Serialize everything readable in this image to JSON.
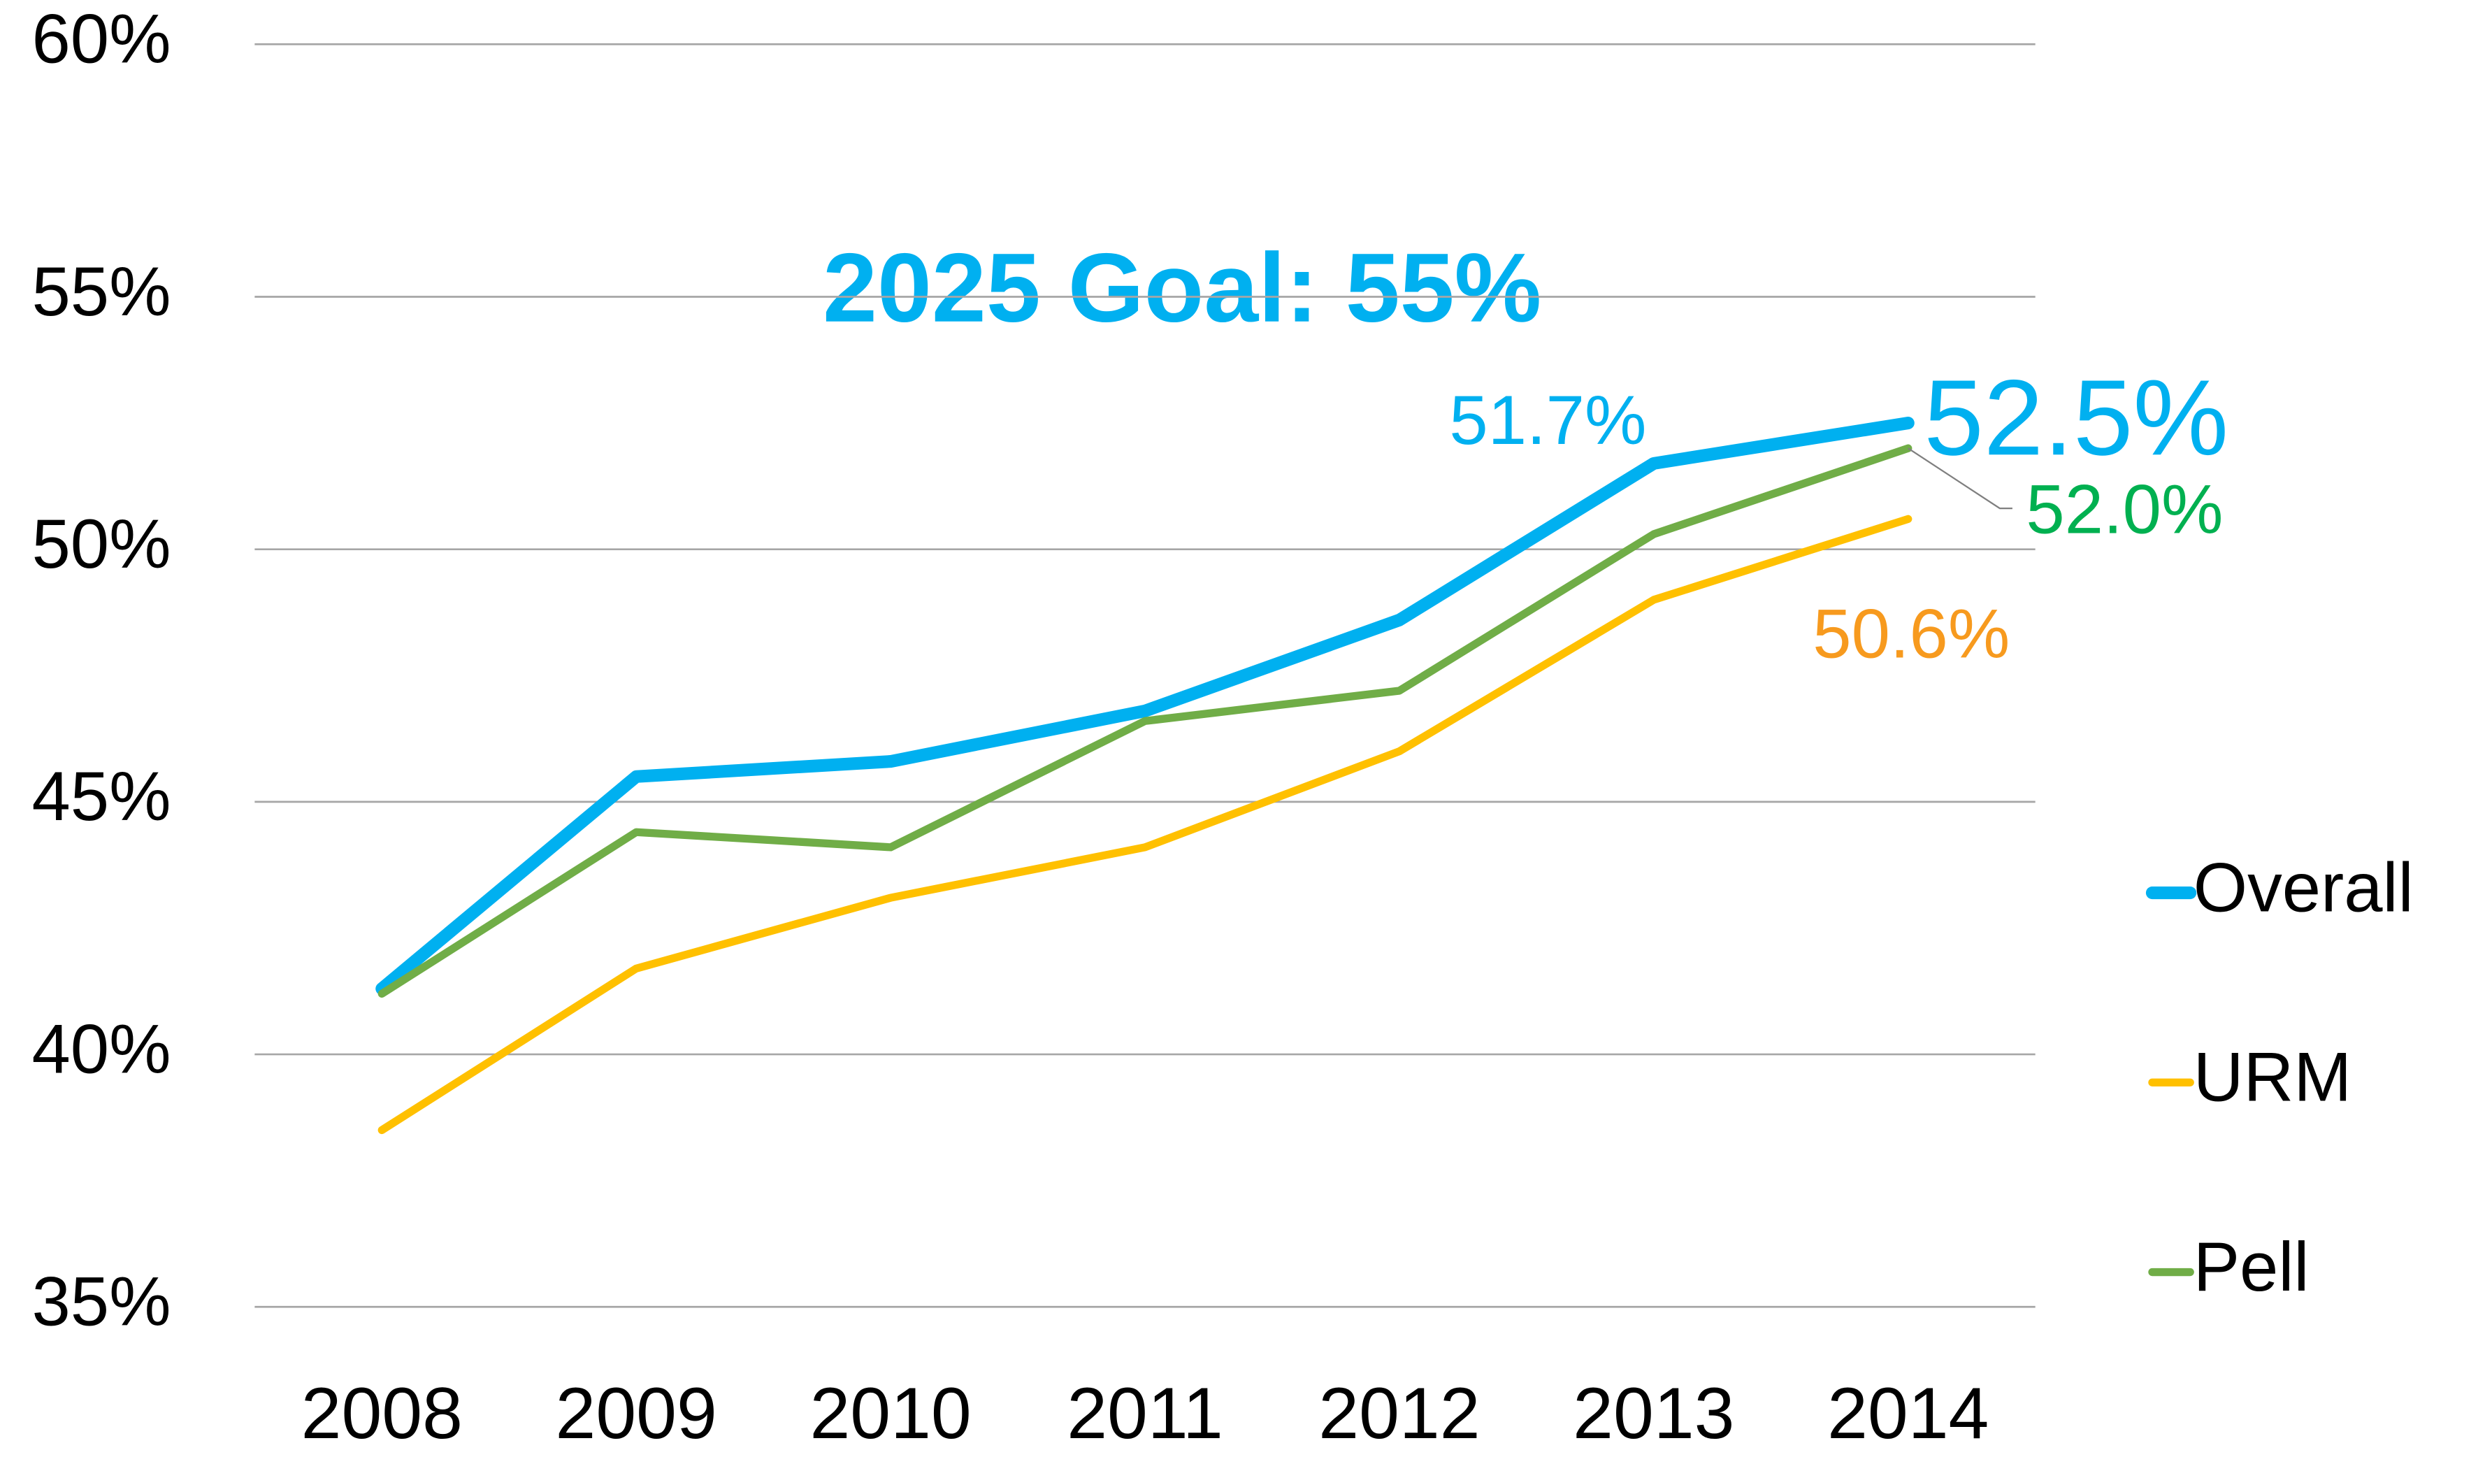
{
  "chart_data": {
    "type": "line",
    "annotations": [
      "2025 Goal: 55%"
    ],
    "categories": [
      "2008",
      "2009",
      "2010",
      "2011",
      "2012",
      "2013",
      "2014"
    ],
    "series": [
      {
        "name": "Overall",
        "color": "#00b0f0",
        "label_color": "#00b0f0",
        "values": [
          41.3,
          45.5,
          45.8,
          46.8,
          48.6,
          51.7,
          52.5
        ],
        "value_labels": [
          null,
          null,
          null,
          null,
          null,
          "51.7%",
          "52.5%"
        ]
      },
      {
        "name": "URM",
        "color": "#ffc000",
        "label_color": "#f79a1e",
        "values": [
          38.5,
          41.7,
          43.1,
          44.1,
          46.0,
          49.0,
          50.6
        ],
        "value_labels": [
          null,
          null,
          null,
          null,
          null,
          null,
          "50.6%"
        ]
      },
      {
        "name": "Pell",
        "color": "#70ad47",
        "label_color": "#00b050",
        "values": [
          41.2,
          44.4,
          44.1,
          46.6,
          47.2,
          50.3,
          52.0
        ],
        "value_labels": [
          null,
          null,
          null,
          null,
          null,
          null,
          "52.0%"
        ]
      }
    ],
    "ylim": [
      35,
      60
    ],
    "yticks": [
      {
        "value": 35,
        "label": "35%"
      },
      {
        "value": 40,
        "label": "40%"
      },
      {
        "value": 45,
        "label": "45%"
      },
      {
        "value": 50,
        "label": "50%"
      },
      {
        "value": 55,
        "label": "55%"
      },
      {
        "value": 60,
        "label": "60%"
      }
    ],
    "grid": true,
    "legend": "right"
  }
}
